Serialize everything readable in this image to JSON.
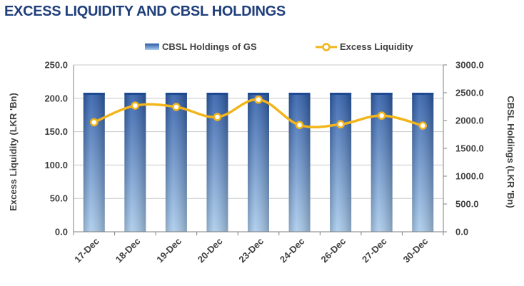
{
  "page": {
    "title": "EXCESS LIQUIDITY AND CBSL HOLDINGS"
  },
  "colors": {
    "bar_dark": "#2b5aa8",
    "bar_light": "#a9cbec",
    "line": "#f2b51a",
    "marker_fill": "#ffffff",
    "grid": "#c8c8c8",
    "title": "#1f3f7a"
  },
  "chart_data": {
    "type": "bar",
    "categories": [
      "17-Dec",
      "18-Dec",
      "19-Dec",
      "20-Dec",
      "23-Dec",
      "24-Dec",
      "26-Dec",
      "27-Dec",
      "30-Dec"
    ],
    "series": [
      {
        "name": "CBSL Holdings of GS",
        "type": "bar",
        "axis": "right",
        "values": [
          2500,
          2500,
          2500,
          2500,
          2500,
          2500,
          2500,
          2500,
          2500
        ]
      },
      {
        "name": "Excess Liquidity",
        "type": "line",
        "axis": "left",
        "values": [
          164,
          189,
          187,
          172,
          198,
          160,
          161,
          174,
          159
        ]
      }
    ],
    "ylabel_left": "Excess Liquidity (LKR 'Bn)",
    "ylabel_right": "CBSL Holdings (LKR 'Bn)",
    "ylim_left": [
      0,
      250
    ],
    "ylim_right": [
      0,
      3000
    ],
    "yticks_left": [
      "0.0",
      "50.0",
      "100.0",
      "150.0",
      "200.0",
      "250.0"
    ],
    "yticks_right": [
      "0.0",
      "500.0",
      "1000.0",
      "1500.0",
      "2000.0",
      "2500.0",
      "3000.0"
    ],
    "grid": true,
    "legend_position": "top"
  }
}
